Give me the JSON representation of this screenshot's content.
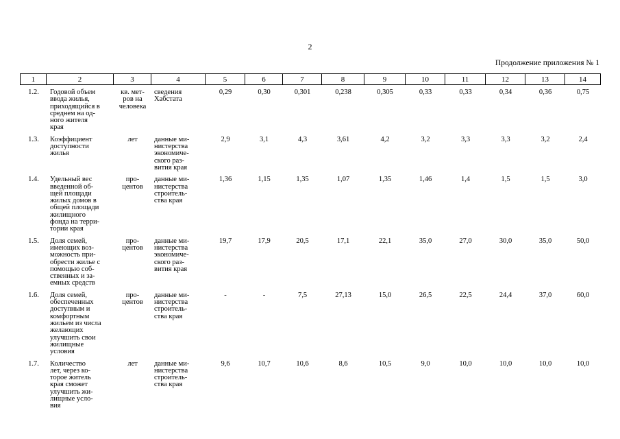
{
  "header": {
    "page_number": "2",
    "continuation": "Продолжение приложения № 1"
  },
  "table": {
    "columns": [
      "1",
      "2",
      "3",
      "4",
      "5",
      "6",
      "7",
      "8",
      "9",
      "10",
      "11",
      "12",
      "13",
      "14"
    ],
    "rows": [
      [
        "1.2.",
        "Годовой объем\nввода жилья,\nприходящийся в\nсреднем на од-\nного жителя\nкрая",
        "кв. мет-\nров на\nчеловека",
        "сведения\nХабстата",
        "0,29",
        "0,30",
        "0,301",
        "0,238",
        "0,305",
        "0,33",
        "0,33",
        "0,34",
        "0,36",
        "0,75"
      ],
      [
        "1.3.",
        "Коэффициент\nдоступности\nжилья",
        "лет",
        "данные ми-\nнистерства\nэкономиче-\nского раз-\nвития края",
        "2,9",
        "3,1",
        "4,3",
        "3,61",
        "4,2",
        "3,2",
        "3,3",
        "3,3",
        "3,2",
        "2,4"
      ],
      [
        "1.4.",
        "Удельный вес\nвведенной об-\nщей площади\nжилых домов в\nобщей площади\nжилищного\nфонда на терри-\nтории края",
        "про-\nцентов",
        "данные ми-\nнистерства\nстроитель-\nства края",
        "1,36",
        "1,15",
        "1,35",
        "1,07",
        "1,35",
        "1,46",
        "1,4",
        "1,5",
        "1,5",
        "3,0"
      ],
      [
        "1.5.",
        "Доля семей,\nимеющих воз-\nможность при-\nобрести жилье с\nпомощью соб-\nственных и за-\nемных средств",
        "про-\nцентов",
        "данные ми-\nнистерства\nэкономиче-\nского раз-\nвития края",
        "19,7",
        "17,9",
        "20,5",
        "17,1",
        "22,1",
        "35,0",
        "27,0",
        "30,0",
        "35,0",
        "50,0"
      ],
      [
        "1.6.",
        "Доля семей,\nобеспеченных\nдоступным и\nкомфортным\nжильем из числа\nжелающих\nулучшить свои\nжилищные\nусловия",
        "про-\nцентов",
        "данные ми-\nнистерства\nстроитель-\nства края",
        "-",
        "-",
        "7,5",
        "27,13",
        "15,0",
        "26,5",
        "22,5",
        "24,4",
        "37,0",
        "60,0"
      ],
      [
        "1.7.",
        "Количество\nлет, через ко-\nторое житель\nкрая сможет\nулучшить жи-\nлищные усло-\nвия",
        "лет",
        "данные ми-\nнистерства\nстроитель-\nства края",
        "9,6",
        "10,7",
        "10,6",
        "8,6",
        "10,5",
        "9,0",
        "10,0",
        "10,0",
        "10,0",
        "10,0"
      ]
    ]
  }
}
